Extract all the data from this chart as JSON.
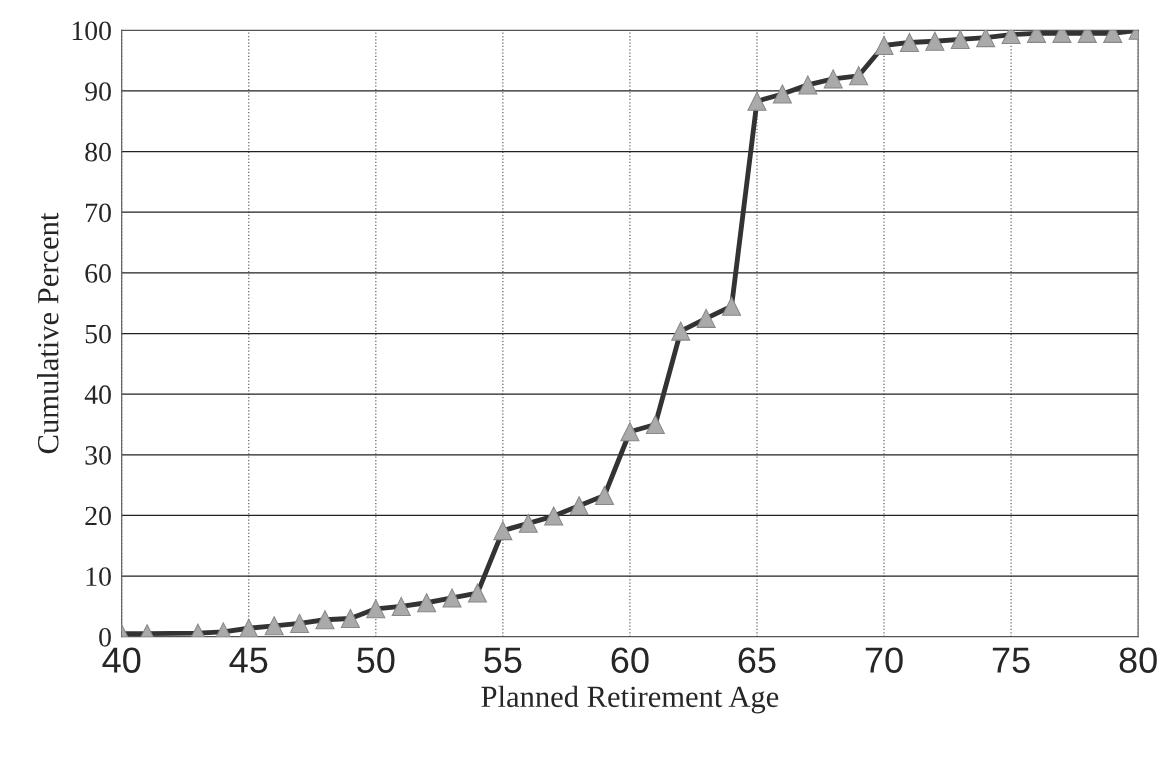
{
  "chart_data": {
    "type": "line",
    "xlabel": "Planned Retirement Age",
    "ylabel": "Cumulative Percent",
    "x": [
      40,
      41,
      43,
      44,
      45,
      46,
      47,
      48,
      49,
      50,
      51,
      52,
      53,
      54,
      55,
      56,
      57,
      58,
      59,
      60,
      61,
      62,
      63,
      64,
      65,
      66,
      67,
      68,
      69,
      70,
      71,
      72,
      73,
      74,
      75,
      76,
      77,
      78,
      79,
      80
    ],
    "series": [
      {
        "color": "#333333",
        "values": [
          0.5,
          0.5,
          0.6,
          0.8,
          1.4,
          1.8,
          2.2,
          2.8,
          3.0,
          4.6,
          5.0,
          5.6,
          6.4,
          7.2,
          17.5,
          18.7,
          19.9,
          21.6,
          23.3,
          33.8,
          35.0,
          50.4,
          52.5,
          54.5,
          88.3,
          89.5,
          91.0,
          92.0,
          92.5,
          97.5,
          98.0,
          98.2,
          98.5,
          98.8,
          99.3,
          99.5,
          99.5,
          99.5,
          99.5,
          100
        ]
      }
    ],
    "xlim": [
      40,
      80
    ],
    "xticks": [
      40,
      45,
      50,
      55,
      60,
      65,
      70,
      75,
      80
    ],
    "ylim": [
      0,
      100
    ],
    "yticks": [
      0,
      10,
      20,
      30,
      40,
      50,
      60,
      70,
      80,
      90,
      100
    ],
    "grid": true,
    "marker": "triangle",
    "line_style": "solid"
  }
}
